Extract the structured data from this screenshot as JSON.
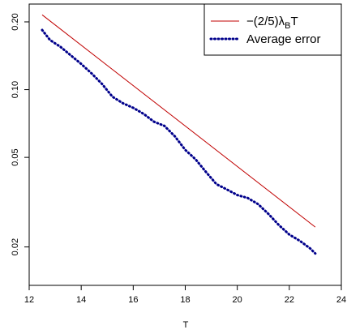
{
  "chart_data": {
    "type": "line",
    "title": "",
    "xlabel": "T",
    "ylabel": "",
    "xlim": [
      12,
      24
    ],
    "ylim": [
      0.0135,
      0.24
    ],
    "y_scale": "log",
    "x_ticks": [
      12,
      14,
      16,
      18,
      20,
      22,
      24
    ],
    "y_ticks": [
      0.02,
      0.05,
      0.1,
      0.2
    ],
    "x_tick_labels": [
      "12",
      "14",
      "16",
      "18",
      "20",
      "22",
      "24"
    ],
    "y_tick_labels": [
      "0.02",
      "0.05",
      "0.10",
      "0.20"
    ],
    "grid": false,
    "legend_position": "top-right",
    "series": [
      {
        "name": "−(2/5)λBT",
        "legend_parts": {
          "prefix": "−(2/5)λ",
          "sub": "B",
          "suffix": "T"
        },
        "color": "#c00000",
        "style": "solid",
        "x": [
          12.5,
          23.0
        ],
        "y": [
          0.215,
          0.0245
        ]
      },
      {
        "name": "Average error",
        "color": "#00008b",
        "style": "dotted",
        "x": [
          12.5,
          12.8,
          13.2,
          13.6,
          14.0,
          14.4,
          14.8,
          15.2,
          15.6,
          16.0,
          16.4,
          16.8,
          17.2,
          17.6,
          18.0,
          18.4,
          18.8,
          19.2,
          19.6,
          20.0,
          20.4,
          20.8,
          21.2,
          21.6,
          22.0,
          22.4,
          22.8,
          23.0
        ],
        "y": [
          0.184,
          0.166,
          0.155,
          0.142,
          0.13,
          0.118,
          0.106,
          0.093,
          0.087,
          0.083,
          0.078,
          0.072,
          0.069,
          0.062,
          0.054,
          0.049,
          0.043,
          0.038,
          0.036,
          0.034,
          0.033,
          0.031,
          0.028,
          0.025,
          0.0227,
          0.0213,
          0.0197,
          0.0187
        ]
      }
    ]
  }
}
